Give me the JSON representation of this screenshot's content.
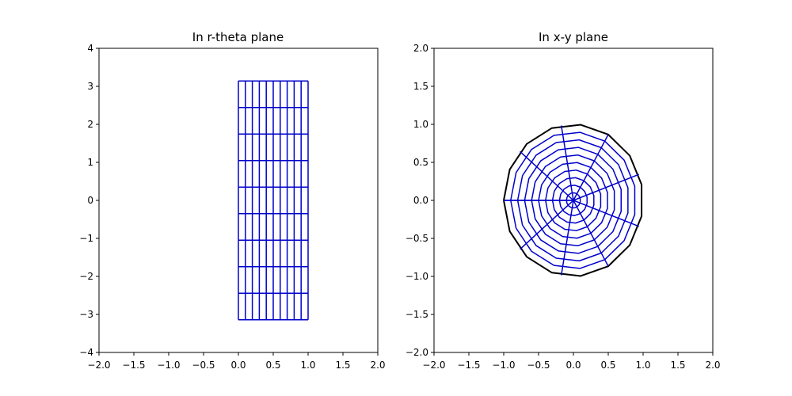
{
  "chart_data": [
    {
      "type": "line",
      "title": "In r-theta plane",
      "xlabel": "",
      "ylabel": "",
      "xlim": [
        -2,
        2
      ],
      "ylim": [
        -4,
        4
      ],
      "xticks": [
        "−2.0",
        "−1.5",
        "−1.0",
        "−0.5",
        "0.0",
        "0.5",
        "1.0",
        "1.5",
        "2.0"
      ],
      "yticks": [
        "−4",
        "−3",
        "−2",
        "−1",
        "0",
        "1",
        "2",
        "3",
        "4"
      ],
      "grid": false,
      "mesh": {
        "r_values": [
          0.0,
          0.1,
          0.2,
          0.3,
          0.4,
          0.5,
          0.6,
          0.7,
          0.8,
          0.9,
          1.0
        ],
        "theta_values": [
          -3.1416,
          -2.4435,
          -1.7453,
          -1.0472,
          -0.3491,
          0.3491,
          1.0472,
          1.7453,
          2.4435,
          3.1416
        ],
        "color": "#0000cc"
      }
    },
    {
      "type": "line",
      "title": "In x-y plane",
      "xlabel": "",
      "ylabel": "",
      "xlim": [
        -2,
        2
      ],
      "ylim": [
        -2,
        2
      ],
      "xticks": [
        "−2.0",
        "−1.5",
        "−1.0",
        "−0.5",
        "0.0",
        "0.5",
        "1.0",
        "1.5",
        "2.0"
      ],
      "yticks": [
        "−2.0",
        "−1.5",
        "−1.0",
        "−0.5",
        "0.0",
        "0.5",
        "1.0",
        "1.5",
        "2.0"
      ],
      "grid": false,
      "mesh": {
        "r_values": [
          0.0,
          0.1,
          0.2,
          0.3,
          0.4,
          0.5,
          0.6,
          0.7,
          0.8,
          0.9,
          1.0
        ],
        "theta_values": [
          -3.1416,
          -2.4435,
          -1.7453,
          -1.0472,
          -0.3491,
          0.3491,
          1.0472,
          1.7453,
          2.4435,
          3.1416
        ],
        "circle_points": 15,
        "color": "#0000cc",
        "boundary_color": "#000000"
      }
    }
  ]
}
